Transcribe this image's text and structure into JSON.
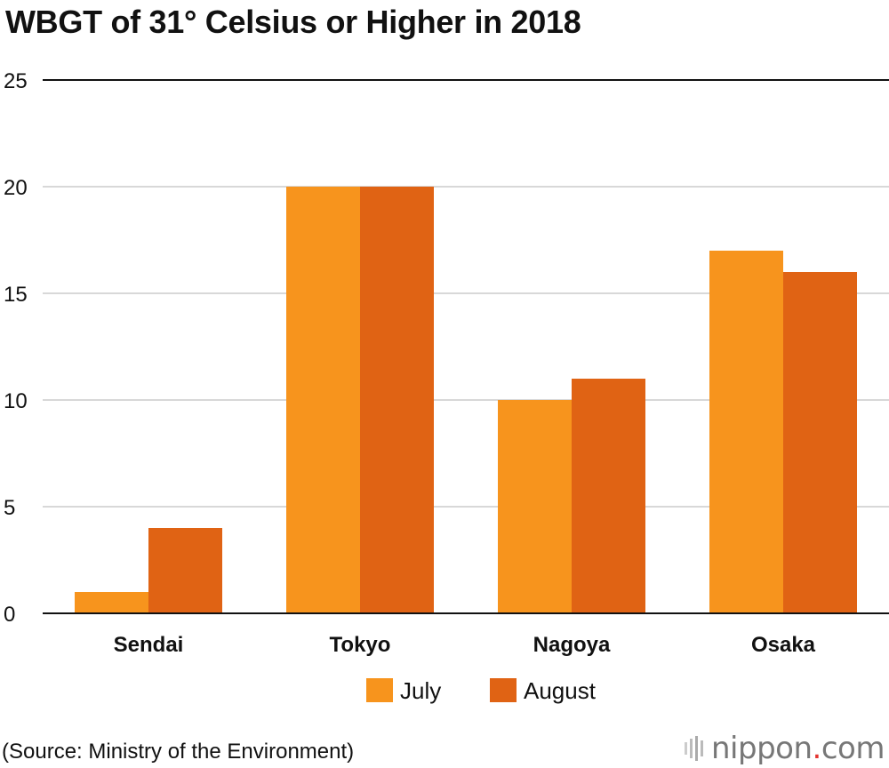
{
  "chart_data": {
    "type": "bar",
    "title": "WBGT of 31° Celsius or Higher in 2018",
    "categories": [
      "Sendai",
      "Tokyo",
      "Nagoya",
      "Osaka"
    ],
    "series": [
      {
        "name": "July",
        "values": [
          1,
          20,
          10,
          17
        ],
        "color": "#f7941d"
      },
      {
        "name": "August",
        "values": [
          4,
          20,
          11,
          16
        ],
        "color": "#e06314"
      }
    ],
    "ylim": [
      0,
      25
    ],
    "yticks": [
      0,
      5,
      10,
      15,
      20,
      25
    ],
    "xlabel": "",
    "ylabel": "",
    "grid": true,
    "legend": "bottom-center"
  },
  "source": "(Source: Ministry of the Environment)",
  "brand": {
    "name": "nippon",
    "dot": ".",
    "suffix": "com"
  }
}
